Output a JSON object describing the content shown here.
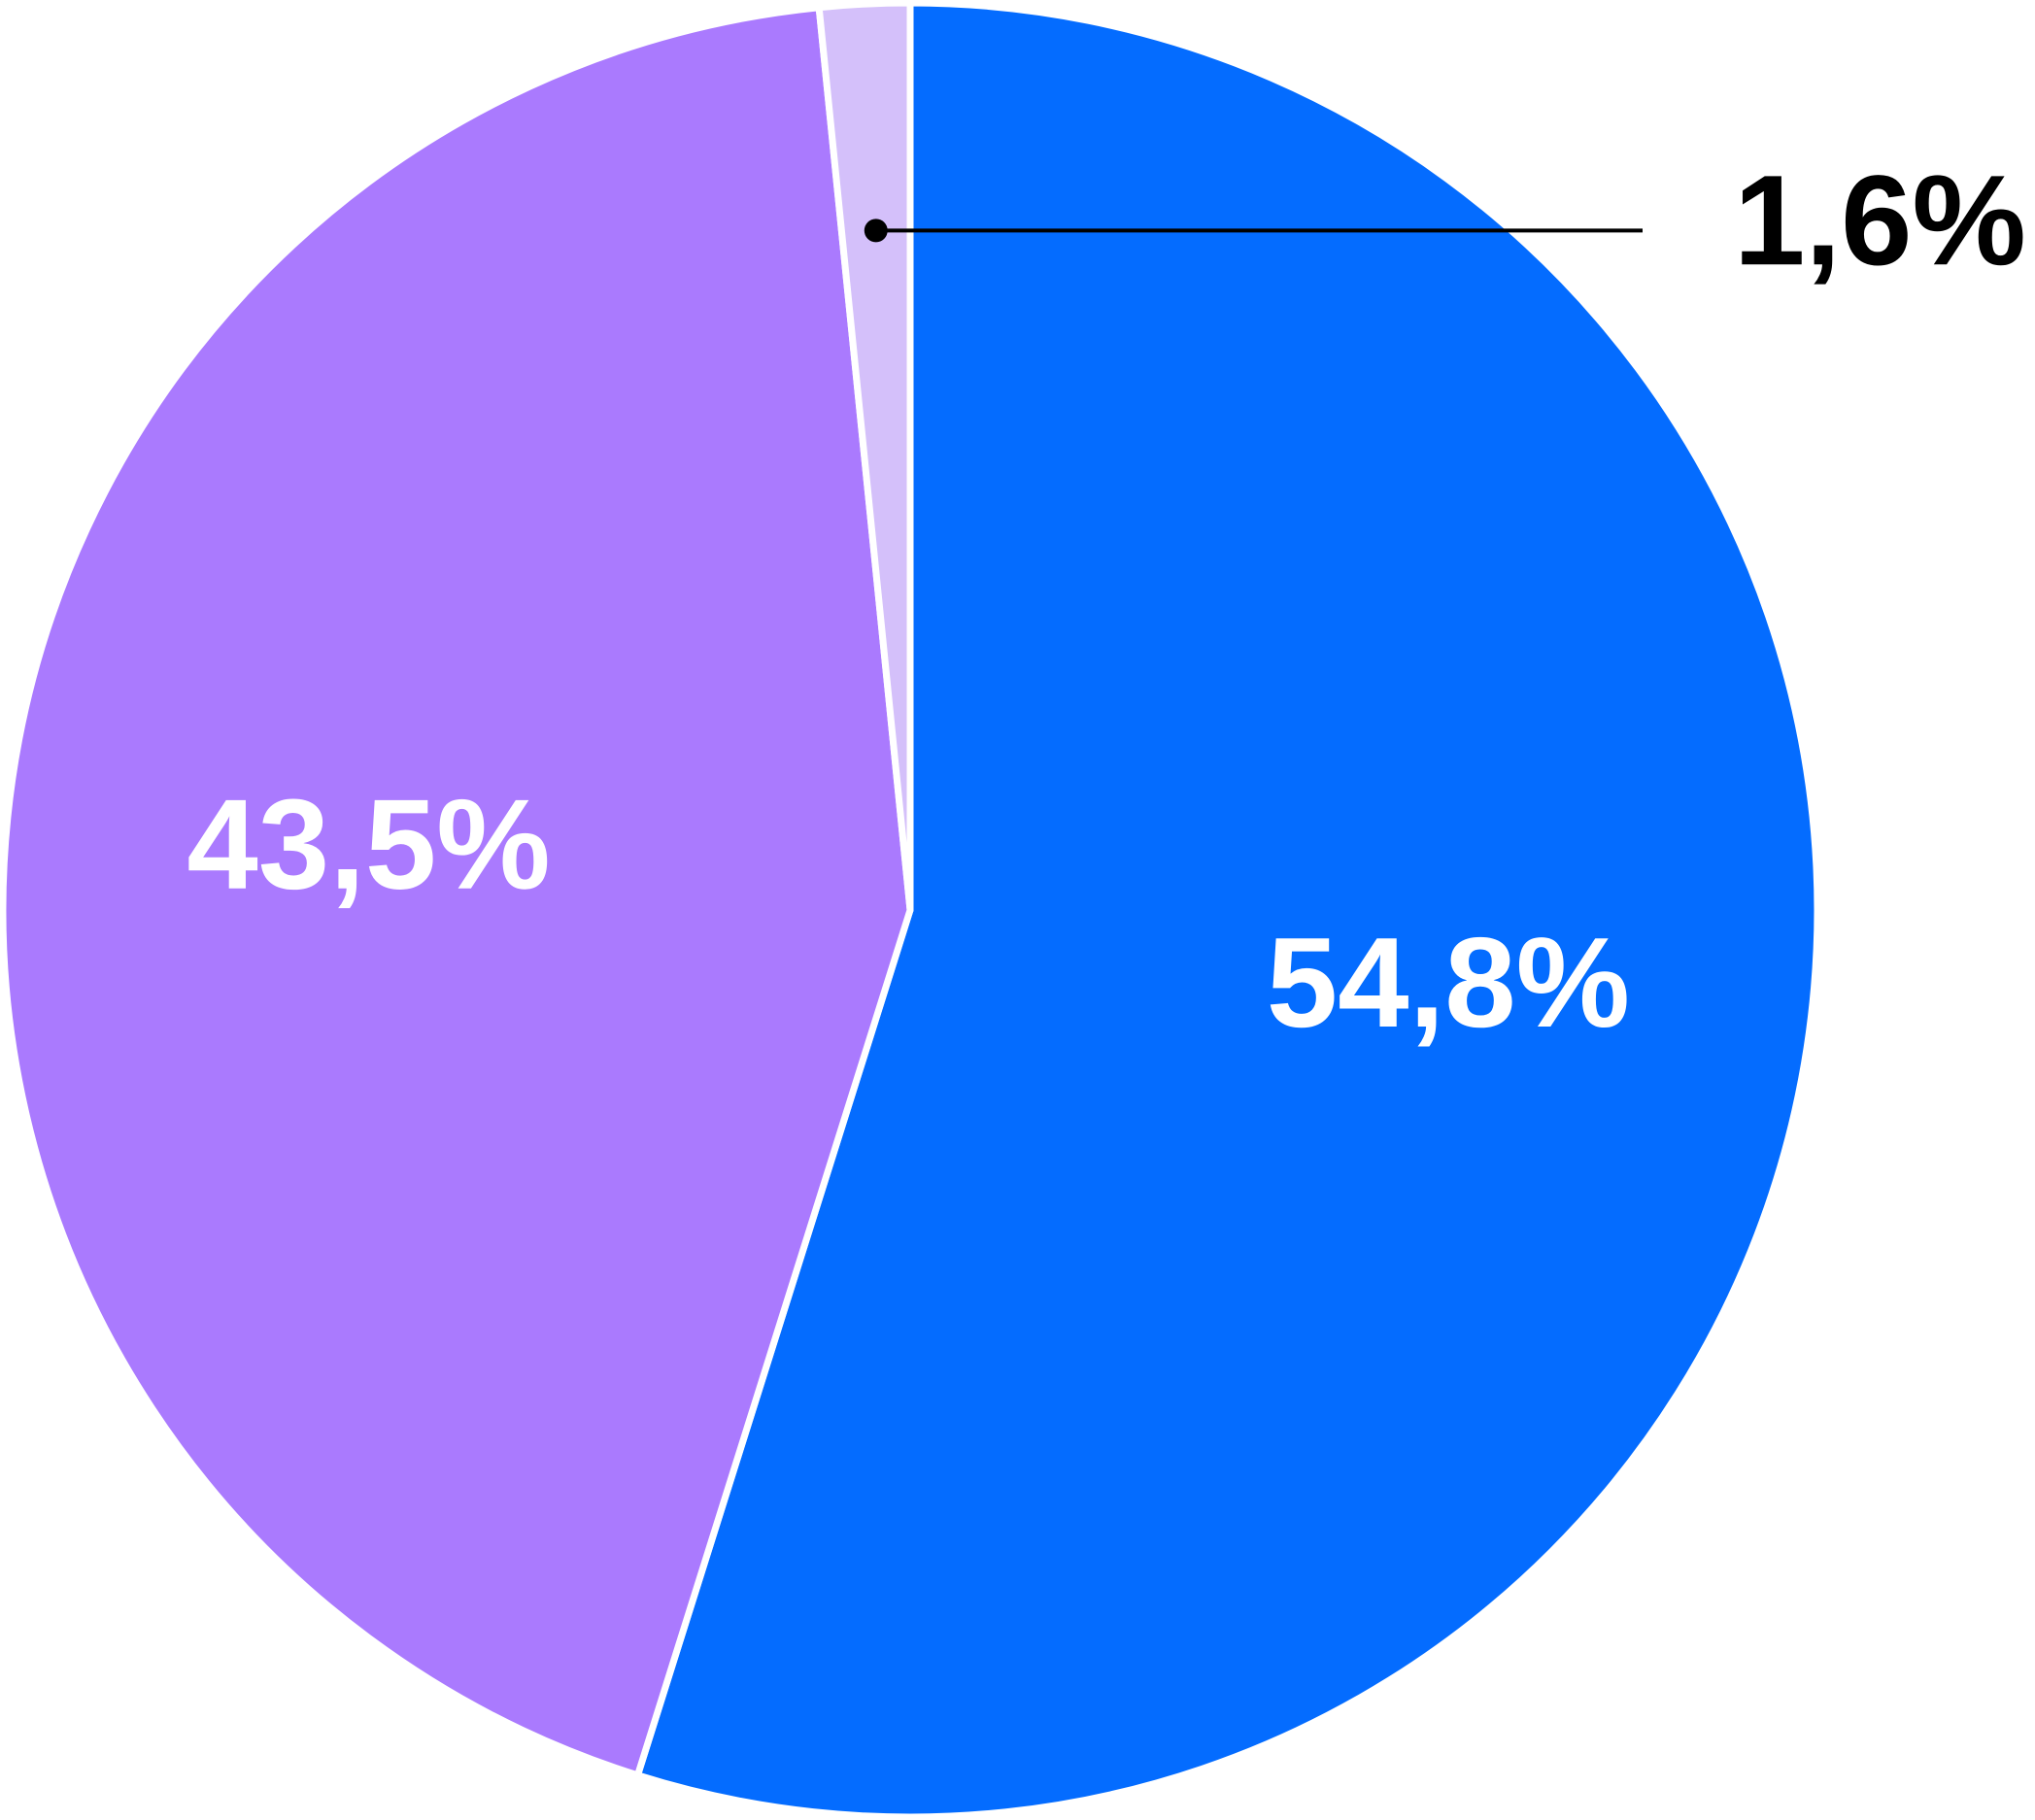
{
  "chart_data": {
    "type": "pie",
    "categories": [
      null,
      null,
      null
    ],
    "values": [
      54.8,
      43.5,
      1.6
    ],
    "value_labels": [
      "54,8%",
      "43,5%",
      "1,6%"
    ],
    "colors": [
      "#046cff",
      "#aa7afe",
      "#d4c0fa"
    ]
  }
}
